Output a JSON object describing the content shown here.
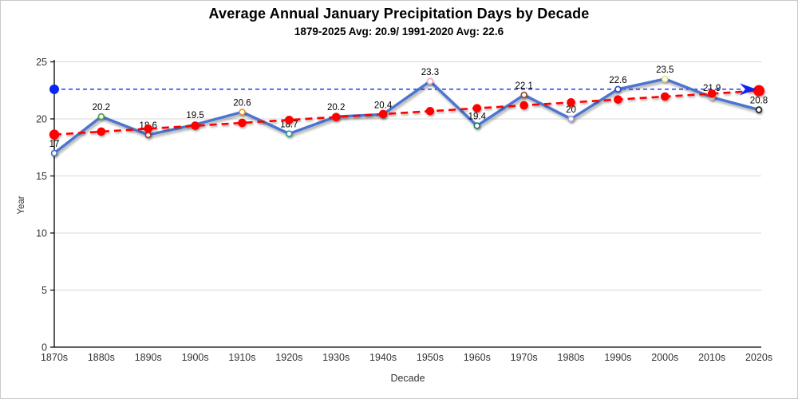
{
  "chart_data": {
    "type": "line",
    "title": "Average Annual January Precipitation Days by Decade",
    "subtitle": "1879-2025 Avg: 20.9/ 1991-2020 Avg: 22.6",
    "xlabel": "Decade",
    "ylabel": "Year",
    "categories": [
      "1870s",
      "1880s",
      "1890s",
      "1900s",
      "1910s",
      "1920s",
      "1930s",
      "1940s",
      "1950s",
      "1960s",
      "1970s",
      "1980s",
      "1990s",
      "2000s",
      "2010s",
      "2020s"
    ],
    "series": [
      {
        "values": [
          17,
          20.2,
          18.6,
          19.5,
          20.6,
          18.7,
          20.2,
          20.4,
          23.3,
          19.4,
          22.1,
          20,
          22.6,
          23.5,
          21.9,
          20.8
        ],
        "color": "#4B74CE",
        "marker_colors": [
          "#4571C6",
          "#4CA747",
          "#9E3B30",
          "#BFBFBF",
          "#E8972E",
          "#2AA193",
          "#BFBFBF",
          "#BFBFBF",
          "#F2AFC1",
          "#217A6C",
          "#8F4E2E",
          "#B09EDE",
          "#2D4EC8",
          "#E9E47E",
          "#D0D0D0",
          "#1A1A1A"
        ]
      }
    ],
    "data_labels": [
      "17",
      "20.2",
      "18.6",
      "19.5",
      "20.6",
      "18.7",
      "20.2",
      "20.4",
      "23.3",
      "19.4",
      "22.1",
      "20",
      "22.6",
      "23.5",
      "21.9",
      "20.8"
    ],
    "reference_line": {
      "value": 22.6,
      "color": "#0827F5",
      "style": "dashed",
      "arrow_end": true
    },
    "trendline": {
      "type": "linear",
      "start_value": 18.63,
      "end_value": 22.47,
      "color": "#FF0000",
      "style": "dashed",
      "dots_at_categories": true
    },
    "ylim": [
      0,
      25
    ],
    "yticks": [
      0,
      5,
      10,
      15,
      20,
      25
    ],
    "grid": true,
    "legend": "none",
    "grid_color": "#D9D9D9",
    "axis_color": "#000000",
    "tick_label_color": "#333333",
    "data_label_color": "#000000"
  }
}
